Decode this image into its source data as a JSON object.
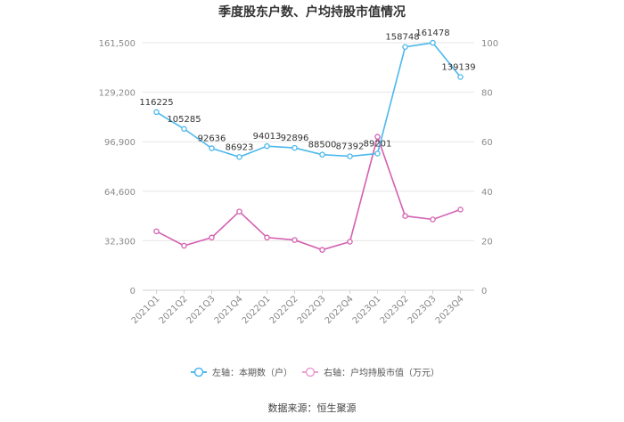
{
  "chart_data": {
    "type": "line",
    "title": "季度股东户数、户均持股市值情况",
    "categories": [
      "2021Q1",
      "2021Q2",
      "2021Q3",
      "2021Q4",
      "2022Q1",
      "2022Q2",
      "2022Q3",
      "2022Q4",
      "2023Q1",
      "2023Q2",
      "2023Q3",
      "2023Q4"
    ],
    "left_axis": {
      "ylim": [
        0,
        161500
      ],
      "ticks": [
        "0",
        "32,300",
        "64,600",
        "96,900",
        "129,200",
        "161,500"
      ]
    },
    "right_axis": {
      "ylim": [
        0,
        100
      ],
      "ticks": [
        "0",
        "20",
        "40",
        "60",
        "80",
        "100"
      ]
    },
    "series": [
      {
        "name": "左轴：本期数（户）",
        "axis": "left",
        "color": "#4db8ec",
        "values": [
          116225,
          105285,
          92636,
          86923,
          94013,
          92896,
          88500,
          87392,
          89201,
          158748,
          161478,
          139139
        ],
        "labels": [
          "116225",
          "105285",
          "92636",
          "86923",
          "94013",
          "92896",
          "88500",
          "87392",
          "89201",
          "158748",
          "161478",
          "139139"
        ]
      },
      {
        "name": "右轴：户均持股市值（万元）",
        "axis": "right",
        "color": "#d460b0",
        "values": [
          23.8,
          18.0,
          21.3,
          31.8,
          21.3,
          20.3,
          16.3,
          19.6,
          62.0,
          30.0,
          28.6,
          32.6
        ]
      }
    ],
    "legend_position": "bottom",
    "grid": true
  },
  "source": "数据来源：恒生聚源"
}
